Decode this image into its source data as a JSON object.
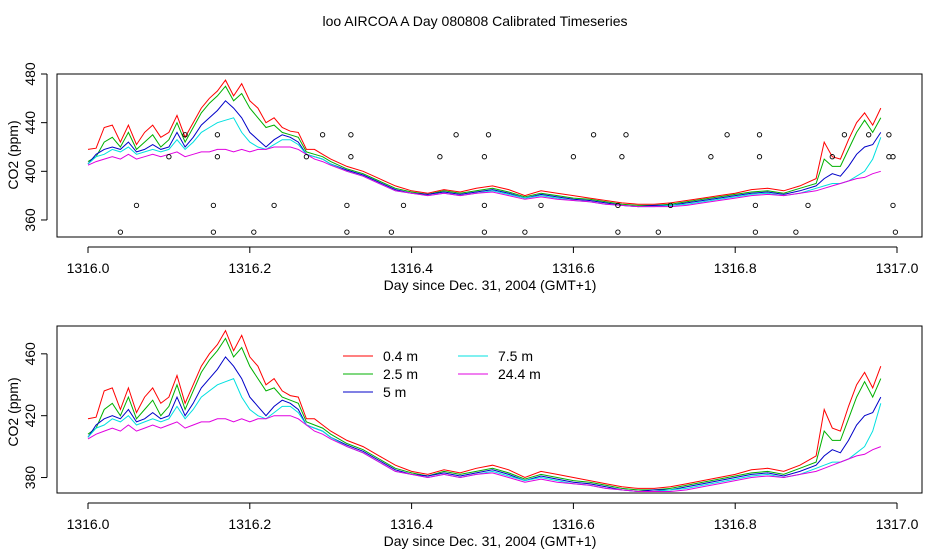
{
  "figure": {
    "title": "loo AIRCOA A  Day 080808  Calibrated Timeseries"
  },
  "colors": {
    "0.4 m": "#ff0000",
    "2.5 m": "#00b000",
    "5 m": "#0000c8",
    "7.5 m": "#00e0e0",
    "24.4 m": "#e000e0"
  },
  "chart_data": [
    {
      "type": "line",
      "title": "",
      "xlabel": "Day since Dec. 31, 2004 (GMT+1)",
      "ylabel": "CO2 (ppm)",
      "xlim": [
        1316.0,
        1317.0
      ],
      "ylim": [
        346,
        480
      ],
      "xticks": [
        "1316.0",
        "1316.2",
        "1316.4",
        "1316.6",
        "1316.8",
        "1317.0"
      ],
      "yticks": [
        "360",
        "400",
        "440",
        "480"
      ],
      "legend": "none",
      "series": "shared",
      "markers": {
        "name": "",
        "x": [
          1316.04,
          1316.06,
          1316.1,
          1316.12,
          1316.155,
          1316.155,
          1316.16,
          1316.16,
          1316.205,
          1316.23,
          1316.27,
          1316.29,
          1316.32,
          1316.32,
          1316.325,
          1316.325,
          1316.375,
          1316.39,
          1316.435,
          1316.455,
          1316.49,
          1316.49,
          1316.49,
          1316.495,
          1316.54,
          1316.56,
          1316.6,
          1316.625,
          1316.655,
          1316.655,
          1316.66,
          1316.665,
          1316.705,
          1316.72,
          1316.77,
          1316.79,
          1316.825,
          1316.825,
          1316.83,
          1316.83,
          1316.875,
          1316.89,
          1316.92,
          1316.935,
          1316.965,
          1316.99,
          1316.99,
          1316.995,
          1316.995,
          1316.998
        ],
        "y": [
          350,
          372,
          412,
          430,
          350,
          372,
          412,
          430,
          350,
          372,
          412,
          430,
          350,
          372,
          412,
          430,
          350,
          372,
          412,
          430,
          350,
          372,
          412,
          430,
          350,
          372,
          412,
          430,
          350,
          372,
          412,
          430,
          350,
          372,
          412,
          430,
          350,
          372,
          412,
          430,
          350,
          372,
          412,
          430,
          430,
          412,
          430,
          372,
          412,
          350
        ]
      }
    },
    {
      "type": "line",
      "title": "",
      "xlabel": "Day since Dec. 31, 2004 (GMT+1)",
      "ylabel": "CO2 (ppm)",
      "xlim": [
        1316.0,
        1317.0
      ],
      "ylim": [
        370,
        478
      ],
      "xticks": [
        "1316.0",
        "1316.2",
        "1316.4",
        "1316.6",
        "1316.8",
        "1317.0"
      ],
      "yticks": [
        "380",
        "420",
        "460"
      ],
      "legend": "top-left",
      "legend_entries": [
        "0.4 m",
        "2.5 m",
        "5 m",
        "7.5 m",
        "24.4 m"
      ],
      "series": "shared"
    }
  ],
  "series": {
    "x": [
      1316.0,
      1316.01,
      1316.02,
      1316.03,
      1316.04,
      1316.05,
      1316.06,
      1316.07,
      1316.08,
      1316.09,
      1316.1,
      1316.11,
      1316.12,
      1316.13,
      1316.14,
      1316.15,
      1316.16,
      1316.17,
      1316.18,
      1316.19,
      1316.2,
      1316.21,
      1316.22,
      1316.23,
      1316.24,
      1316.25,
      1316.26,
      1316.27,
      1316.28,
      1316.29,
      1316.3,
      1316.32,
      1316.34,
      1316.36,
      1316.38,
      1316.4,
      1316.42,
      1316.44,
      1316.46,
      1316.48,
      1316.5,
      1316.52,
      1316.54,
      1316.56,
      1316.58,
      1316.6,
      1316.62,
      1316.64,
      1316.66,
      1316.68,
      1316.7,
      1316.72,
      1316.74,
      1316.76,
      1316.78,
      1316.8,
      1316.82,
      1316.84,
      1316.86,
      1316.88,
      1316.9,
      1316.91,
      1316.92,
      1316.93,
      1316.94,
      1316.95,
      1316.96,
      1316.97,
      1316.98
    ],
    "lines": [
      {
        "name": "0.4 m",
        "values": [
          418,
          419,
          436,
          438,
          424,
          438,
          422,
          432,
          438,
          428,
          432,
          446,
          428,
          440,
          452,
          460,
          466,
          475,
          462,
          472,
          458,
          452,
          440,
          444,
          436,
          433,
          432,
          418,
          418,
          414,
          410,
          404,
          400,
          394,
          388,
          384,
          382,
          385,
          383,
          386,
          388,
          385,
          380,
          384,
          382,
          380,
          378,
          376,
          374,
          373,
          373,
          374,
          376,
          378,
          380,
          382,
          385,
          386,
          384,
          388,
          394,
          424,
          412,
          410,
          426,
          440,
          448,
          438,
          452
        ]
      },
      {
        "name": "2.5 m",
        "values": [
          408,
          412,
          424,
          428,
          420,
          432,
          418,
          424,
          430,
          420,
          426,
          440,
          424,
          436,
          448,
          456,
          462,
          470,
          458,
          464,
          452,
          444,
          436,
          438,
          432,
          430,
          428,
          416,
          414,
          412,
          408,
          402,
          398,
          392,
          386,
          383,
          381,
          384,
          382,
          384,
          386,
          383,
          379,
          382,
          380,
          378,
          377,
          375,
          373,
          372,
          372,
          373,
          375,
          377,
          379,
          381,
          383,
          384,
          382,
          386,
          390,
          410,
          404,
          404,
          418,
          432,
          442,
          432,
          444
        ]
      },
      {
        "name": "5 m",
        "values": [
          406,
          414,
          418,
          420,
          418,
          424,
          416,
          418,
          422,
          418,
          420,
          432,
          420,
          428,
          438,
          444,
          450,
          458,
          452,
          444,
          432,
          426,
          420,
          426,
          430,
          428,
          424,
          414,
          412,
          410,
          406,
          401,
          397,
          391,
          385,
          382,
          381,
          383,
          381,
          383,
          385,
          382,
          378,
          381,
          379,
          377,
          376,
          374,
          372,
          371,
          372,
          372,
          374,
          376,
          378,
          380,
          382,
          383,
          381,
          384,
          388,
          394,
          398,
          396,
          404,
          414,
          420,
          422,
          432
        ]
      },
      {
        "name": "7.5 m",
        "values": [
          406,
          412,
          414,
          418,
          416,
          420,
          414,
          416,
          418,
          416,
          418,
          426,
          418,
          424,
          432,
          436,
          440,
          442,
          444,
          432,
          424,
          420,
          418,
          422,
          426,
          426,
          422,
          414,
          412,
          410,
          406,
          400,
          396,
          390,
          384,
          382,
          380,
          382,
          380,
          382,
          384,
          381,
          378,
          380,
          378,
          376,
          375,
          373,
          372,
          371,
          371,
          372,
          373,
          375,
          377,
          379,
          381,
          382,
          380,
          382,
          386,
          388,
          390,
          390,
          392,
          396,
          400,
          410,
          428
        ]
      },
      {
        "name": "24.4 m",
        "values": [
          405,
          408,
          410,
          412,
          410,
          414,
          410,
          412,
          414,
          412,
          414,
          416,
          412,
          414,
          416,
          416,
          418,
          418,
          416,
          418,
          416,
          418,
          418,
          420,
          420,
          420,
          418,
          414,
          410,
          408,
          405,
          400,
          396,
          390,
          384,
          382,
          380,
          382,
          380,
          382,
          383,
          380,
          377,
          379,
          377,
          376,
          375,
          373,
          372,
          371,
          371,
          371,
          372,
          374,
          376,
          378,
          380,
          381,
          380,
          382,
          384,
          386,
          388,
          390,
          392,
          394,
          395,
          398,
          400
        ]
      }
    ]
  }
}
